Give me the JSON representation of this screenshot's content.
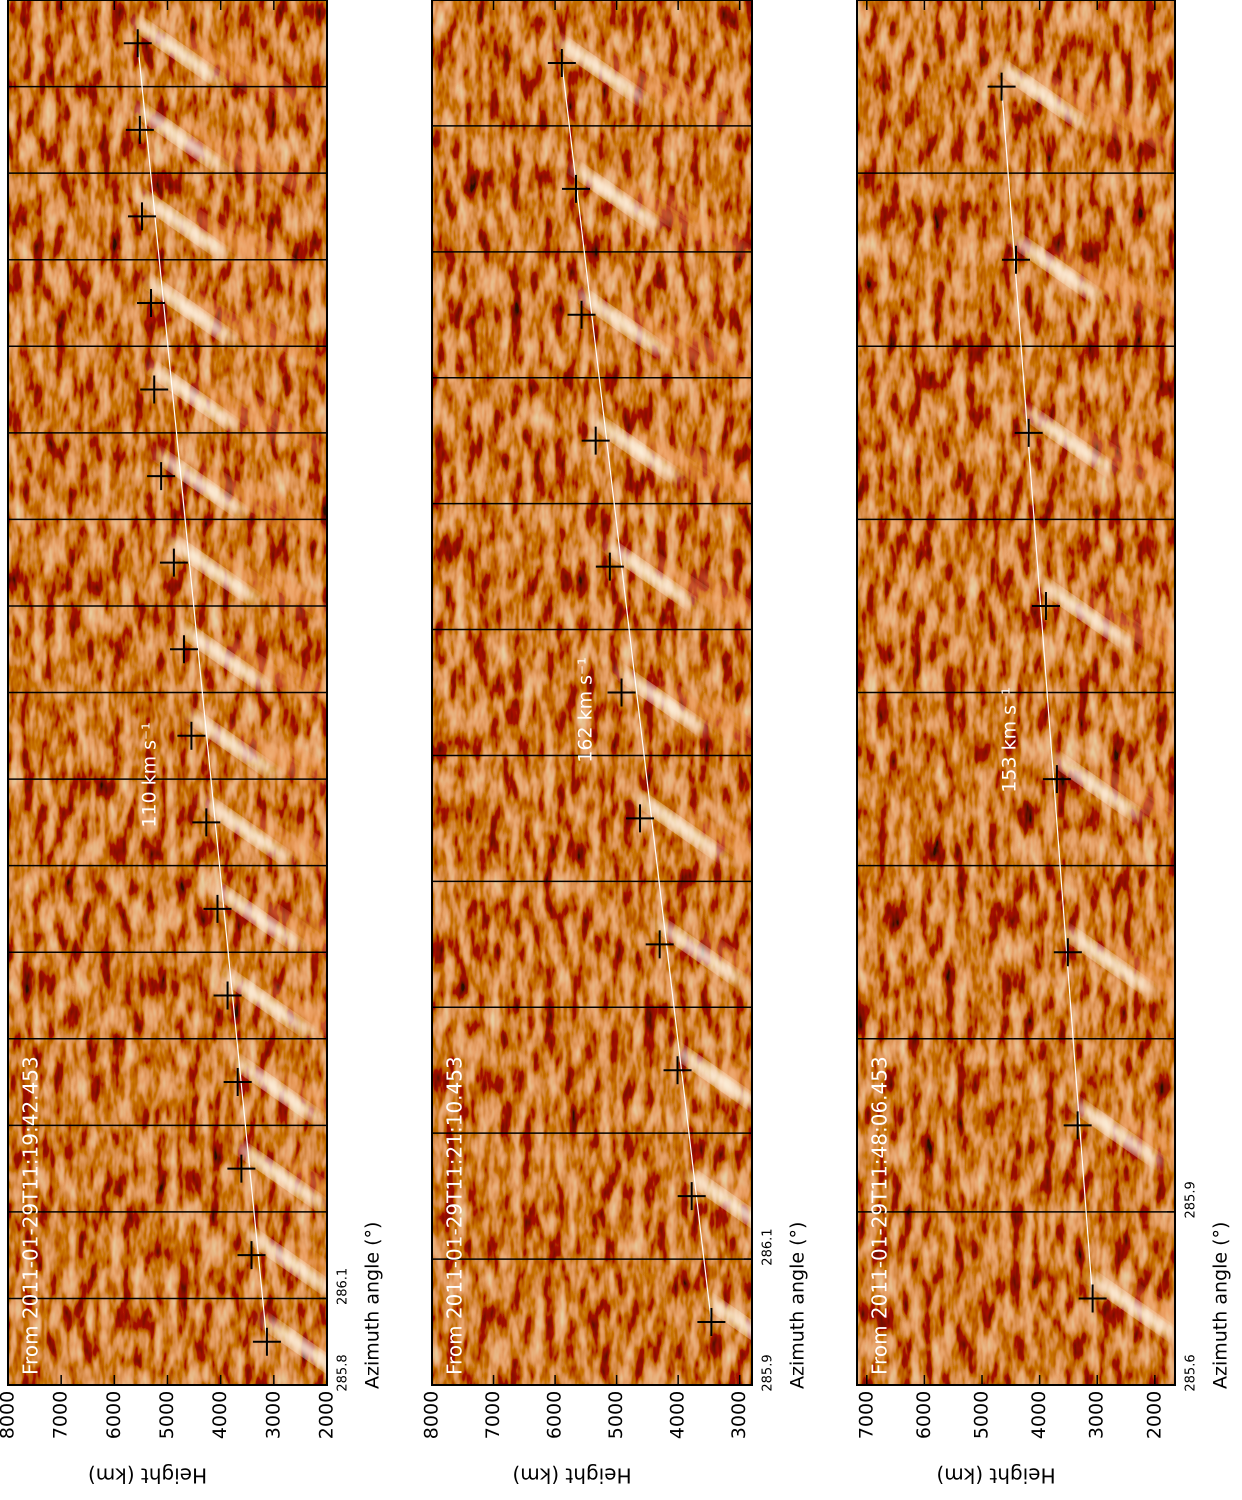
{
  "chart_data": [
    {
      "type": "scatter",
      "title": "From 2011-01-29T11:19:42.453",
      "x_label": "Azimuth angle (°)",
      "y_label": "Height (km)",
      "annotation": "110 km s⁻¹",
      "xticks": [
        285.8,
        286.1
      ],
      "ylim": [
        8000,
        2000
      ],
      "yticks": [
        8000,
        7000,
        6000,
        5000,
        4000,
        3000,
        2000
      ],
      "values": [
        3130,
        3420,
        3610,
        3680,
        3870,
        4060,
        4270,
        4550,
        4690,
        4880,
        5120,
        5250,
        5310,
        5480,
        5520,
        5560
      ]
    },
    {
      "type": "scatter",
      "title": "From 2011-01-29T11:21:10.453",
      "x_label": "Azimuth angle (°)",
      "y_label": "Height (km)",
      "annotation": "162 km s⁻¹",
      "xticks": [
        285.9,
        286.1
      ],
      "ylim": [
        8000,
        2800
      ],
      "yticks": [
        8000,
        7000,
        6000,
        5000,
        4000,
        3000
      ],
      "values": [
        3460,
        3780,
        4010,
        4300,
        4620,
        4920,
        5110,
        5340,
        5570,
        5660,
        5890
      ]
    },
    {
      "type": "scatter",
      "title": "From 2011-01-29T11:48:06.453",
      "x_label": "Azimuth angle (°)",
      "y_label": "Height (km)",
      "annotation": "153 km s⁻¹",
      "xticks": [
        285.6,
        285.9
      ],
      "ylim": [
        7170,
        1650
      ],
      "yticks": [
        7000,
        6000,
        5000,
        4000,
        3000,
        2000
      ],
      "values": [
        3080,
        3340,
        3510,
        3700,
        3890,
        4190,
        4410,
        4660
      ]
    }
  ]
}
